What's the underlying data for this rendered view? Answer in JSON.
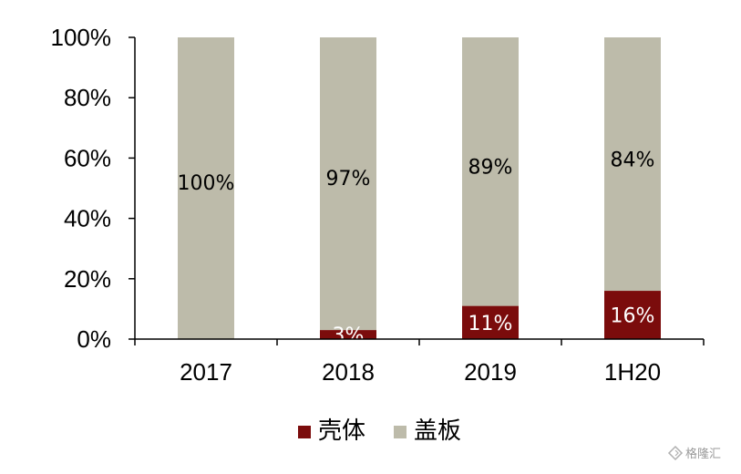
{
  "chart_data": {
    "type": "bar",
    "stacked": true,
    "categories": [
      "2017",
      "2018",
      "2019",
      "1H20"
    ],
    "series": [
      {
        "name": "壳体",
        "color": "#7b0c0c",
        "values": [
          0,
          3,
          11,
          16
        ],
        "labels": [
          "",
          "3%",
          "11%",
          "16%"
        ],
        "label_color": "#ffffff"
      },
      {
        "name": "盖板",
        "color": "#bdbbaa",
        "values": [
          100,
          97,
          89,
          84
        ],
        "labels": [
          "100%",
          "97%",
          "89%",
          "84%"
        ],
        "label_color": "#000000"
      }
    ],
    "y_ticks": [
      "0%",
      "20%",
      "40%",
      "60%",
      "80%",
      "100%"
    ],
    "ylim": [
      0,
      100
    ],
    "legend_position": "bottom",
    "grid": false,
    "title": "",
    "xlabel": "",
    "ylabel": ""
  },
  "watermark": {
    "text": "格隆汇"
  }
}
